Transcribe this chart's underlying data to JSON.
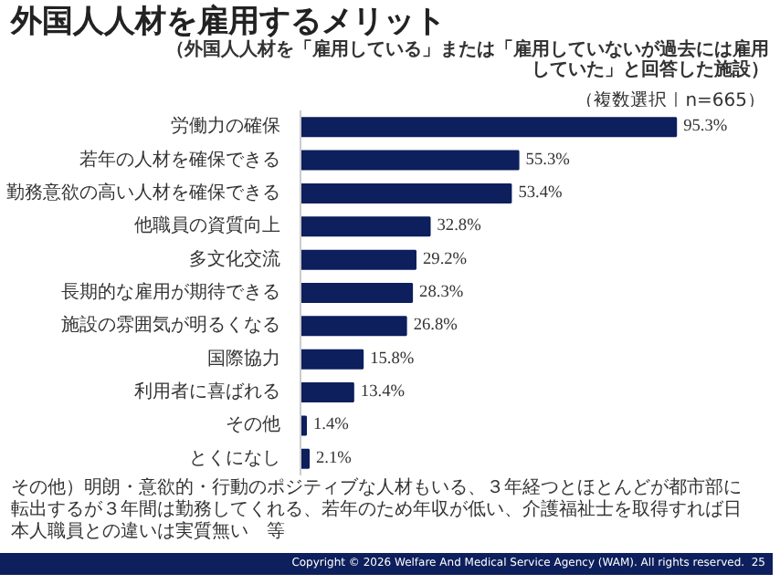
{
  "chart_data": {
    "type": "bar",
    "orientation": "horizontal",
    "title": "外国人人材を雇用するメリット",
    "subtitle": "（外国人人材を「雇用している」または「雇用していないが過去には雇用していた」と回答した施設）",
    "categories": [
      "労働力の確保",
      "若年の人材を確保できる",
      "勤務意欲の高い人材を確保できる",
      "他職員の資質向上",
      "多文化交流",
      "長期的な雇用が期待できる",
      "施設の雰囲気が明るくなる",
      "国際協力",
      "利用者に喜ばれる",
      "その他",
      "とくになし"
    ],
    "values": [
      95.3,
      55.3,
      53.4,
      32.8,
      29.2,
      28.3,
      26.8,
      15.8,
      13.4,
      1.4,
      2.1
    ],
    "value_labels": [
      "95.3%",
      "55.3%",
      "53.4%",
      "32.8%",
      "29.2%",
      "28.3%",
      "26.8%",
      "15.8%",
      "13.4%",
      "1.4%",
      "2.1%"
    ],
    "color": "#0d1f5c",
    "tick_labels": "y",
    "grid": false,
    "annotations": [
      "（複数選択｜n=665）",
      "その他）明朗・意欲的・行動のポジティブな人材もいる、３年経つとほとんどが都市部に転出するが３年間は勤務してくれる、若年のため年収が低い、介護福祉士を取得すれば日本人職員との違いは実質無い　等",
      "Copyright © 2026 Welfare And Medical Service Agency (WAM). All rights reserved.",
      "25"
    ]
  }
}
